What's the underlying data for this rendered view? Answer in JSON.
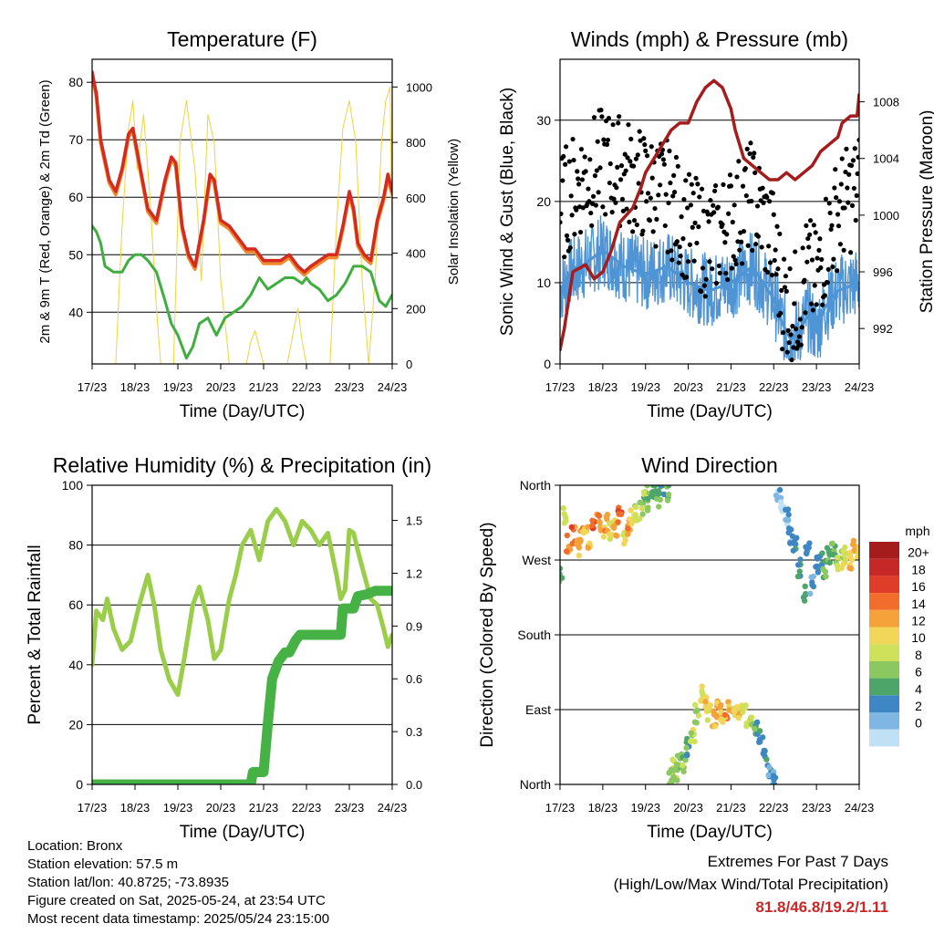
{
  "colors": {
    "temp_red": "#d42a20",
    "temp_orange": "#f08a2c",
    "dewpoint_green": "#3eae3e",
    "solar_yellow": "#f2d23c",
    "wind_blue": "#4f94d4",
    "gust_black": "#000000",
    "pressure_maroon": "#a51c1c",
    "rh_green": "#9acd4a",
    "precip_green": "#46b246",
    "extremes_red": "#cc2727"
  },
  "time_ticks": [
    "17/23",
    "18/23",
    "19/23",
    "20/23",
    "21/23",
    "22/23",
    "23/23",
    "24/23"
  ],
  "panels": {
    "temperature": {
      "title": "Temperature (F)",
      "xlabel": "Time (Day/UTC)",
      "ylabel_left": "2m & 9m T (Red, Orange) & 2m Td (Green)",
      "ylabel_right": "Solar Insolation (Yellow)"
    },
    "winds": {
      "title": "Winds (mph) & Pressure (mb)",
      "xlabel": "Time (Day/UTC)",
      "ylabel_left": "Sonic Wind & Gust (Blue, Black)",
      "ylabel_right": "Station Pressure (Maroon)"
    },
    "humidity": {
      "title": "Relative Humidity (%) & Precipitation (in)",
      "xlabel": "Time (Day/UTC)",
      "ylabel_left": "Percent & Total Rainfall"
    },
    "direction": {
      "title": "Wind Direction",
      "xlabel": "Time (Day/UTC)",
      "ylabel_left": "Direction (Colored By Speed)",
      "colorbar_title": "mph"
    }
  },
  "footer": {
    "location": "Location: Bronx",
    "elevation": "Station elevation: 57.5 m",
    "latlon": "Station lat/lon: 40.8725; -73.8935",
    "created": "Figure created on Sat, 2025-05-24, at 23:54 UTC",
    "recent": "Most recent data timestamp: 2025/05/24 23:15:00"
  },
  "extremes": {
    "title": "Extremes For Past 7 Days",
    "subtitle": "(High/Low/Max Wind/Total Precipitation)",
    "values": "81.8/46.8/19.2/1.11"
  },
  "chart_data": [
    {
      "type": "line",
      "panel": "temperature",
      "x_unit": "days since 17/23",
      "xlim": [
        0,
        7
      ],
      "ylim": [
        31,
        84
      ],
      "yticks": [
        40,
        50,
        60,
        70,
        80
      ],
      "y2lim": [
        0,
        1100
      ],
      "y2ticks": [
        0,
        200,
        400,
        600,
        800,
        1000
      ],
      "series": [
        {
          "name": "2m T",
          "color": "#d42a20",
          "x": [
            0,
            0.1,
            0.2,
            0.4,
            0.55,
            0.7,
            0.85,
            0.95,
            1.1,
            1.3,
            1.5,
            1.7,
            1.85,
            1.95,
            2.1,
            2.25,
            2.4,
            2.6,
            2.75,
            2.85,
            3.0,
            3.2,
            3.4,
            3.6,
            3.8,
            4.0,
            4.2,
            4.4,
            4.6,
            4.8,
            4.95,
            5.1,
            5.3,
            5.5,
            5.7,
            5.85,
            6.0,
            6.1,
            6.2,
            6.35,
            6.5,
            6.65,
            6.8,
            6.9,
            7.0
          ],
          "values": [
            81.8,
            78,
            70,
            63,
            61,
            65,
            71,
            72,
            66,
            58,
            56,
            63,
            67,
            66,
            55,
            50,
            48,
            56,
            64,
            63,
            56,
            55,
            53,
            51,
            51,
            49,
            49,
            49,
            50,
            48,
            47,
            48,
            49,
            50,
            50,
            55,
            61,
            58,
            52,
            50,
            49,
            56,
            60,
            64,
            61
          ]
        },
        {
          "name": "Solar Insolation",
          "color": "#f2d23c",
          "x": [
            0,
            0.55,
            0.7,
            0.85,
            0.95,
            1.05,
            1.2,
            1.35,
            1.5,
            1.6,
            1.75,
            1.9,
            2.05,
            2.2,
            2.4,
            2.55,
            2.7,
            2.85,
            3.0,
            3.2,
            3.45,
            3.6,
            3.7,
            3.8,
            3.9,
            4.0,
            4.4,
            4.55,
            4.7,
            4.8,
            4.9,
            5.0,
            5.4,
            5.55,
            5.7,
            5.85,
            6.0,
            6.15,
            6.3,
            6.45,
            6.6,
            6.75,
            6.85,
            6.95,
            7.0
          ],
          "values": [
            0,
            0,
            500,
            850,
            950,
            700,
            900,
            600,
            200,
            0,
            0,
            0,
            800,
            950,
            700,
            300,
            900,
            800,
            300,
            0,
            0,
            0,
            80,
            120,
            60,
            0,
            0,
            0,
            120,
            200,
            80,
            0,
            0,
            0,
            500,
            850,
            950,
            800,
            300,
            0,
            300,
            800,
            950,
            1000,
            400
          ]
        },
        {
          "name": "2m Td",
          "color": "#3eae3e",
          "x": [
            0,
            0.1,
            0.2,
            0.3,
            0.5,
            0.7,
            0.85,
            1.0,
            1.15,
            1.3,
            1.5,
            1.7,
            1.85,
            2.0,
            2.2,
            2.35,
            2.5,
            2.7,
            2.9,
            3.1,
            3.3,
            3.5,
            3.7,
            3.9,
            4.1,
            4.3,
            4.5,
            4.7,
            4.9,
            5.0,
            5.1,
            5.3,
            5.5,
            5.7,
            5.9,
            6.1,
            6.3,
            6.5,
            6.7,
            6.85,
            7.0
          ],
          "values": [
            55,
            54,
            52,
            48,
            47,
            47,
            49,
            50,
            50,
            49,
            47,
            42,
            38,
            36,
            32,
            34,
            38,
            39,
            36,
            39,
            40,
            41,
            43,
            46,
            44,
            45,
            46,
            46,
            45,
            46,
            45,
            44,
            42,
            43,
            45,
            48,
            48,
            47,
            42,
            41,
            43
          ]
        }
      ]
    },
    {
      "type": "line",
      "panel": "winds",
      "x_unit": "days since 17/23",
      "xlim": [
        0,
        7
      ],
      "ylim": [
        0,
        37.5
      ],
      "yticks": [
        0,
        10,
        20,
        30
      ],
      "y2lim": [
        989.5,
        1011
      ],
      "y2ticks": [
        992,
        996,
        1000,
        1004,
        1008
      ],
      "series": [
        {
          "name": "Sonic Wind",
          "color": "#4f94d4",
          "x": [
            0,
            0.2,
            0.5,
            1.0,
            1.5,
            2.0,
            2.5,
            3.0,
            3.5,
            4.0,
            4.5,
            5.0,
            5.2,
            5.4,
            5.6,
            5.8,
            6.0,
            6.2,
            6.5,
            7.0
          ],
          "values": [
            9,
            11,
            12,
            14,
            12,
            11,
            12,
            10,
            9,
            10,
            12,
            8,
            5,
            3,
            4,
            6,
            4,
            7,
            9,
            10
          ]
        },
        {
          "name": "Gust",
          "color": "#000000",
          "x": [
            0,
            0.2,
            0.5,
            1.0,
            1.5,
            2.0,
            2.5,
            3.0,
            3.5,
            4.0,
            4.5,
            5.0,
            5.2,
            5.4,
            5.6,
            5.8,
            6.0,
            6.2,
            6.5,
            7.0
          ],
          "values": [
            18,
            20,
            22,
            24,
            23,
            21,
            20,
            16,
            14,
            17,
            20,
            14,
            8,
            6,
            7,
            11,
            9,
            14,
            18,
            21
          ]
        },
        {
          "name": "Station Pressure",
          "color": "#a51c1c",
          "x": [
            0,
            0.1,
            0.3,
            0.6,
            0.8,
            1.0,
            1.2,
            1.4,
            1.7,
            1.9,
            2.0,
            2.2,
            2.4,
            2.6,
            2.8,
            3.0,
            3.2,
            3.4,
            3.6,
            3.8,
            4.0,
            4.1,
            4.3,
            4.5,
            4.7,
            4.9,
            5.1,
            5.3,
            5.5,
            5.7,
            5.9,
            6.1,
            6.3,
            6.5,
            6.6,
            6.8,
            6.95,
            7.0
          ],
          "values": [
            990.5,
            992,
            996,
            996.5,
            995.5,
            996,
            997.5,
            999.5,
            1000.5,
            1002,
            1003,
            1004,
            1005,
            1006,
            1006.5,
            1006.5,
            1008,
            1009,
            1009.5,
            1009,
            1007.5,
            1006,
            1004,
            1003.5,
            1003,
            1002.5,
            1002.5,
            1003,
            1002.5,
            1003,
            1003.5,
            1004.5,
            1005,
            1005.5,
            1006.5,
            1007,
            1007,
            1008.5
          ]
        }
      ]
    },
    {
      "type": "line",
      "panel": "humidity",
      "x_unit": "days since 17/23",
      "xlim": [
        0,
        7
      ],
      "ylim": [
        0,
        100
      ],
      "yticks": [
        0,
        20,
        40,
        60,
        80,
        100
      ],
      "y2lim": [
        0,
        1.7
      ],
      "y2ticks": [
        "0.0",
        "0.3",
        "0.6",
        "0.9",
        "1.2",
        "1.5"
      ],
      "series": [
        {
          "name": "Relative Humidity",
          "color": "#9acd4a",
          "x": [
            0,
            0.1,
            0.25,
            0.35,
            0.5,
            0.7,
            0.9,
            1.1,
            1.3,
            1.45,
            1.6,
            1.8,
            2.0,
            2.15,
            2.35,
            2.5,
            2.7,
            2.85,
            3.0,
            3.2,
            3.35,
            3.5,
            3.7,
            3.9,
            4.1,
            4.3,
            4.5,
            4.7,
            4.9,
            5.1,
            5.3,
            5.5,
            5.7,
            5.8,
            5.9,
            6.0,
            6.1,
            6.2,
            6.35,
            6.5,
            6.65,
            6.8,
            6.9,
            7.0
          ],
          "values": [
            40,
            58,
            55,
            62,
            52,
            45,
            48,
            60,
            70,
            60,
            45,
            35,
            30,
            42,
            60,
            66,
            55,
            42,
            45,
            62,
            70,
            80,
            85,
            75,
            88,
            92,
            88,
            80,
            88,
            85,
            80,
            84,
            70,
            62,
            65,
            85,
            84,
            78,
            70,
            62,
            60,
            52,
            46,
            50
          ]
        },
        {
          "name": "Total Precipitation",
          "color": "#46b246",
          "x": [
            0,
            3.7,
            3.75,
            4.0,
            4.1,
            4.2,
            4.35,
            4.5,
            4.6,
            4.75,
            4.85,
            5.0,
            5.5,
            5.8,
            5.85,
            6.1,
            6.2,
            6.4,
            6.6,
            7.0
          ],
          "values": [
            0,
            0,
            0.07,
            0.07,
            0.35,
            0.6,
            0.7,
            0.75,
            0.75,
            0.82,
            0.85,
            0.85,
            0.85,
            0.85,
            1.0,
            1.0,
            1.07,
            1.08,
            1.1,
            1.1
          ]
        }
      ]
    },
    {
      "type": "scatter",
      "panel": "direction",
      "x_unit": "days since 17/23",
      "xlim": [
        0,
        7
      ],
      "ylim": [
        0,
        360
      ],
      "y_ticklabels": [
        "North",
        "East",
        "South",
        "West",
        "North"
      ],
      "y_tickvalues": [
        0,
        90,
        180,
        270,
        360
      ],
      "colorbar": {
        "title": "mph",
        "labels": [
          "20+",
          "18",
          "16",
          "14",
          "12",
          "10",
          "8",
          "6",
          "4",
          "2",
          "0"
        ],
        "colors": [
          "#a51c1c",
          "#c62828",
          "#e03d28",
          "#f26d2c",
          "#f5a23a",
          "#f2d65a",
          "#cfe05a",
          "#8cc860",
          "#4ea56a",
          "#3f87c4",
          "#7fb6e3",
          "#bfe0f5"
        ]
      },
      "series": [
        {
          "name": "Direction",
          "x": [
            0,
            0.1,
            0.2,
            0.3,
            0.4,
            0.5,
            0.6,
            0.7,
            0.8,
            0.9,
            1.0,
            1.1,
            1.2,
            1.3,
            1.4,
            1.5,
            1.6,
            1.7,
            1.8,
            1.9,
            2.0,
            2.1,
            2.2,
            2.3,
            2.4,
            2.5,
            2.6,
            2.65,
            2.7,
            2.8,
            2.9,
            3.0,
            3.1,
            3.2,
            3.3,
            3.4,
            3.5,
            3.6,
            3.7,
            3.8,
            3.9,
            4.0,
            4.1,
            4.2,
            4.3,
            4.4,
            4.5,
            4.6,
            4.7,
            4.8,
            4.9,
            5.0,
            5.1,
            5.2,
            5.3,
            5.4,
            5.5,
            5.6,
            5.7,
            5.8,
            5.9,
            6.0,
            6.1,
            6.2,
            6.3,
            6.4,
            6.5,
            6.6,
            6.7,
            6.8,
            6.9,
            7.0
          ],
          "values": [
            250,
            325,
            290,
            300,
            285,
            300,
            305,
            295,
            310,
            320,
            300,
            315,
            305,
            310,
            325,
            300,
            310,
            320,
            325,
            330,
            350,
            340,
            355,
            345,
            360,
            352,
            10,
            20,
            15,
            30,
            25,
            45,
            60,
            85,
            110,
            95,
            85,
            80,
            90,
            85,
            90,
            85,
            90,
            90,
            85,
            80,
            75,
            70,
            55,
            40,
            20,
            5,
            345,
            335,
            320,
            300,
            290,
            260,
            230,
            280,
            240,
            265,
            270,
            260,
            275,
            285,
            265,
            270,
            275,
            270,
            290,
            280
          ],
          "speeds": [
            6,
            10,
            14,
            16,
            13,
            14,
            12,
            14,
            16,
            14,
            13,
            15,
            12,
            14,
            16,
            12,
            14,
            12,
            10,
            9,
            8,
            7,
            6,
            6,
            5,
            6,
            8,
            10,
            9,
            7,
            8,
            6,
            10,
            9,
            11,
            12,
            12,
            13,
            14,
            12,
            14,
            12,
            12,
            13,
            11,
            10,
            9,
            6,
            4,
            5,
            4,
            3,
            2,
            1,
            2,
            3,
            4,
            5,
            6,
            4,
            3,
            4,
            5,
            6,
            6,
            8,
            9,
            10,
            11,
            12,
            13,
            12
          ]
        }
      ]
    }
  ]
}
